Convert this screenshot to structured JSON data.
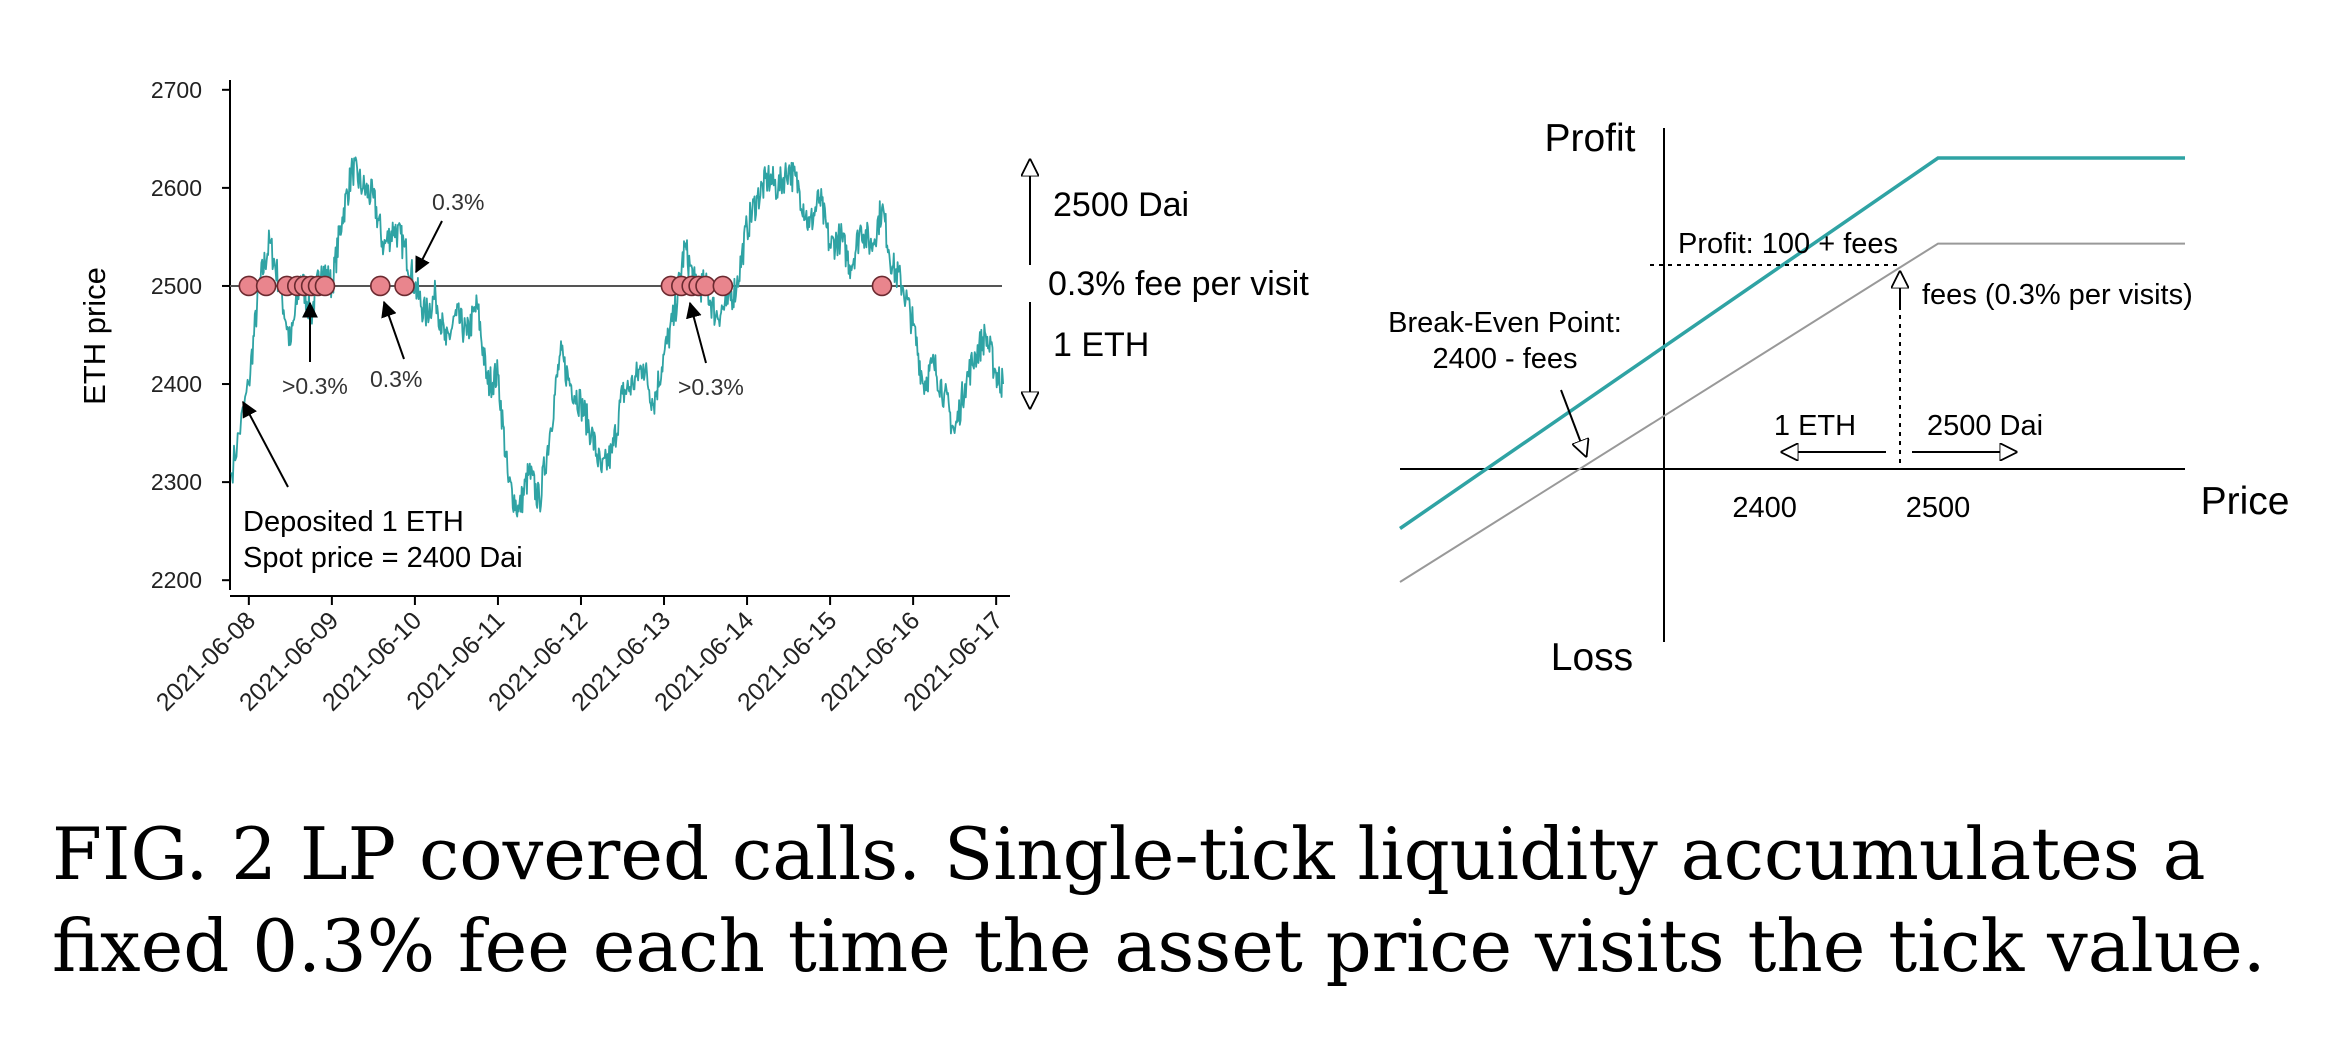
{
  "colors": {
    "series": "#2fa3a4",
    "marker_fill": "#e9858d",
    "marker_stroke": "#6b2a30",
    "axis": "#000000",
    "ref_line": "#555555",
    "grey_line": "#999999"
  },
  "chart_data": [
    {
      "type": "line",
      "ylabel": "ETH price",
      "xlabel": "",
      "ylim": [
        2190,
        2710
      ],
      "xlim": [
        "2021-06-07 20:00",
        "2021-06-17 04:00"
      ],
      "yticks": [
        2200,
        2300,
        2400,
        2500,
        2600,
        2700
      ],
      "xticks": [
        "2021-06-08",
        "2021-06-09",
        "2021-06-10",
        "2021-06-11",
        "2021-06-12",
        "2021-06-13",
        "2021-06-14",
        "2021-06-15",
        "2021-06-16",
        "2021-06-17"
      ],
      "reference_line": 2500,
      "series": [
        {
          "x": [
            "2021-06-07 19:00",
            "2021-06-08 00:00",
            "2021-06-08 03:00",
            "2021-06-08 06:00",
            "2021-06-08 09:00",
            "2021-06-08 12:00",
            "2021-06-08 15:00",
            "2021-06-08 18:00",
            "2021-06-08 21:00",
            "2021-06-09 00:00",
            "2021-06-09 03:00",
            "2021-06-09 06:00",
            "2021-06-09 09:00",
            "2021-06-09 12:00",
            "2021-06-09 15:00",
            "2021-06-09 18:00",
            "2021-06-09 21:00",
            "2021-06-10 00:00",
            "2021-06-10 03:00",
            "2021-06-10 06:00",
            "2021-06-10 09:00",
            "2021-06-10 12:00",
            "2021-06-10 15:00",
            "2021-06-10 18:00",
            "2021-06-10 21:00",
            "2021-06-11 00:00",
            "2021-06-11 03:00",
            "2021-06-11 06:00",
            "2021-06-11 09:00",
            "2021-06-11 12:00",
            "2021-06-11 15:00",
            "2021-06-11 18:00",
            "2021-06-11 21:00",
            "2021-06-12 00:00",
            "2021-06-12 03:00",
            "2021-06-12 06:00",
            "2021-06-12 09:00",
            "2021-06-12 12:00",
            "2021-06-12 15:00",
            "2021-06-12 18:00",
            "2021-06-12 21:00",
            "2021-06-13 00:00",
            "2021-06-13 03:00",
            "2021-06-13 06:00",
            "2021-06-13 09:00",
            "2021-06-13 12:00",
            "2021-06-13 15:00",
            "2021-06-13 18:00",
            "2021-06-13 21:00",
            "2021-06-14 00:00",
            "2021-06-14 03:00",
            "2021-06-14 06:00",
            "2021-06-14 09:00",
            "2021-06-14 12:00",
            "2021-06-14 15:00",
            "2021-06-14 18:00",
            "2021-06-14 21:00",
            "2021-06-15 00:00",
            "2021-06-15 03:00",
            "2021-06-15 06:00",
            "2021-06-15 09:00",
            "2021-06-15 12:00",
            "2021-06-15 15:00",
            "2021-06-15 18:00",
            "2021-06-15 21:00",
            "2021-06-16 00:00",
            "2021-06-16 03:00",
            "2021-06-16 06:00",
            "2021-06-16 09:00",
            "2021-06-16 12:00",
            "2021-06-16 15:00",
            "2021-06-16 18:00",
            "2021-06-16 21:00",
            "2021-06-17 00:00",
            "2021-06-17 02:00"
          ],
          "values": [
            2310,
            2400,
            2500,
            2545,
            2500,
            2440,
            2510,
            2470,
            2520,
            2500,
            2570,
            2620,
            2600,
            2590,
            2540,
            2560,
            2540,
            2500,
            2470,
            2490,
            2440,
            2470,
            2450,
            2480,
            2400,
            2410,
            2300,
            2270,
            2310,
            2280,
            2350,
            2430,
            2400,
            2380,
            2350,
            2310,
            2330,
            2390,
            2400,
            2420,
            2380,
            2430,
            2470,
            2540,
            2500,
            2500,
            2470,
            2480,
            2500,
            2560,
            2590,
            2610,
            2600,
            2620,
            2600,
            2560,
            2590,
            2540,
            2550,
            2520,
            2560,
            2540,
            2580,
            2520,
            2500,
            2460,
            2400,
            2420,
            2390,
            2350,
            2400,
            2430,
            2450,
            2410,
            2400
          ]
        }
      ],
      "markers": {
        "y": 2500,
        "x": [
          "2021-06-08 00:00",
          "2021-06-08 05:00",
          "2021-06-08 11:00",
          "2021-06-08 14:00",
          "2021-06-08 16:00",
          "2021-06-08 18:00",
          "2021-06-08 20:00",
          "2021-06-08 22:00",
          "2021-06-09 14:00",
          "2021-06-09 21:00",
          "2021-06-13 02:00",
          "2021-06-13 05:00",
          "2021-06-13 08:00",
          "2021-06-13 10:00",
          "2021-06-13 12:00",
          "2021-06-13 17:00",
          "2021-06-15 15:00"
        ]
      },
      "annotations": {
        "deposit": [
          "Deposited 1 ETH",
          "Spot price = 2400 Dai"
        ],
        "fee_top": "0.3%",
        "fee_mid": "0.3%",
        "fee_gt_1": ">0.3%",
        "fee_gt_2": ">0.3%",
        "right_dai": "2500 Dai",
        "right_fee": "0.3% fee per visit",
        "right_eth": "1 ETH"
      }
    },
    {
      "type": "line",
      "xlabel": "Price",
      "ylabel_top": "Profit",
      "ylabel_bottom": "Loss",
      "xticks": [
        2400,
        2500
      ],
      "xlim": [
        2243,
        2618
      ],
      "ylim": [
        -110,
        130
      ],
      "series": [
        {
          "name": "",
          "x": [
            2243,
            2500,
            2618
          ],
          "y": [
            -57,
            116,
            116
          ]
        },
        {
          "name": "",
          "x": [
            2243,
            2500,
            2618
          ],
          "y": [
            -82,
            76,
            76
          ]
        }
      ],
      "annotations": {
        "profit": "Profit: 100 + fees",
        "fees": "fees (0.3% per visits)",
        "break_even_1": "Break-Even Point:",
        "break_even_2": "2400 - fees",
        "eth": "1 ETH",
        "dai": "2500 Dai"
      }
    }
  ],
  "caption": "FIG. 2 LP covered calls. Single-tick liquidity accumulates a fixed 0.3% fee each time the asset price visits the tick value."
}
